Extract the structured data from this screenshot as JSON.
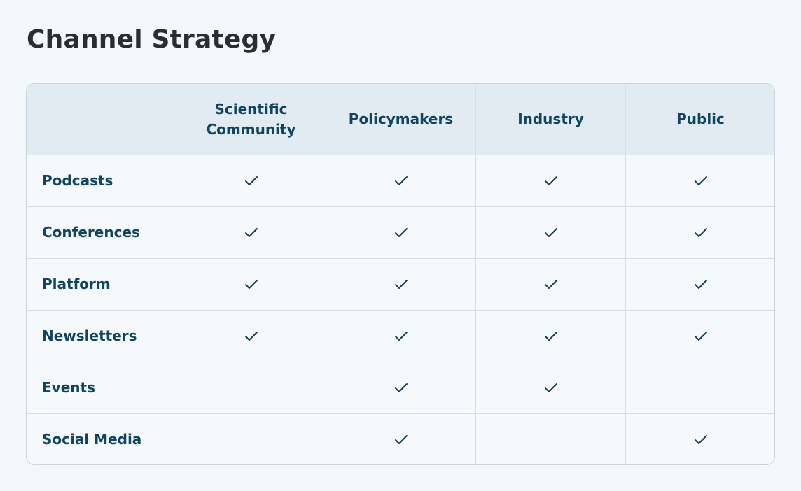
{
  "title": "Channel Strategy",
  "table": {
    "columns": [
      "Scientific Community",
      "Policymakers",
      "Industry",
      "Public"
    ],
    "rows": [
      {
        "label": "Podcasts",
        "checks": [
          true,
          true,
          true,
          true
        ]
      },
      {
        "label": "Conferences",
        "checks": [
          true,
          true,
          true,
          true
        ]
      },
      {
        "label": "Platform",
        "checks": [
          true,
          true,
          true,
          true
        ]
      },
      {
        "label": "Newsletters",
        "checks": [
          true,
          true,
          true,
          true
        ]
      },
      {
        "label": "Events",
        "checks": [
          false,
          true,
          true,
          false
        ]
      },
      {
        "label": "Social Media",
        "checks": [
          false,
          true,
          false,
          true
        ]
      }
    ]
  }
}
